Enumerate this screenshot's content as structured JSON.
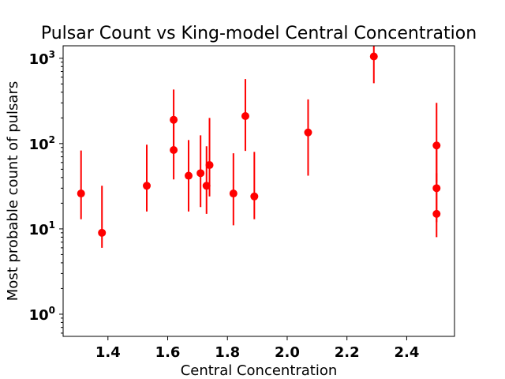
{
  "chart_data": {
    "type": "scatter",
    "title": "Pulsar Count vs King-model Central Concentration",
    "xlabel": "Central Concentration",
    "ylabel": "Most probable count of pulsars",
    "xlim": [
      1.25,
      2.56
    ],
    "ylim": [
      0.55,
      1400
    ],
    "yscale": "log",
    "grid": false,
    "x_ticks": [
      "1.4",
      "1.6",
      "1.8",
      "2.0",
      "2.2",
      "2.4"
    ],
    "y_ticks": [
      {
        "value": 1,
        "base": "10",
        "exp": "0"
      },
      {
        "value": 10,
        "base": "10",
        "exp": "1"
      },
      {
        "value": 100,
        "base": "10",
        "exp": "2"
      },
      {
        "value": 1000,
        "base": "10",
        "exp": "3"
      }
    ],
    "color": "#ff0000",
    "points": [
      {
        "x": 1.31,
        "y": 26,
        "low": 13,
        "high": 83
      },
      {
        "x": 1.38,
        "y": 9,
        "low": 6,
        "high": 32
      },
      {
        "x": 1.53,
        "y": 32,
        "low": 16,
        "high": 97
      },
      {
        "x": 1.62,
        "y": 190,
        "low": 85,
        "high": 430
      },
      {
        "x": 1.62,
        "y": 84,
        "low": 38,
        "high": 190
      },
      {
        "x": 1.67,
        "y": 42,
        "low": 16,
        "high": 110
      },
      {
        "x": 1.71,
        "y": 45,
        "low": 18,
        "high": 125
      },
      {
        "x": 1.73,
        "y": 32,
        "low": 15,
        "high": 93
      },
      {
        "x": 1.74,
        "y": 56,
        "low": 24,
        "high": 200
      },
      {
        "x": 1.82,
        "y": 26,
        "low": 11,
        "high": 77
      },
      {
        "x": 1.86,
        "y": 210,
        "low": 82,
        "high": 570
      },
      {
        "x": 1.89,
        "y": 24,
        "low": 13,
        "high": 80
      },
      {
        "x": 2.07,
        "y": 135,
        "low": 42,
        "high": 330
      },
      {
        "x": 2.29,
        "y": 1050,
        "low": 510,
        "high": 1400
      },
      {
        "x": 2.5,
        "y": 95,
        "low": 35,
        "high": 300
      },
      {
        "x": 2.5,
        "y": 30,
        "low": 12,
        "high": 95
      },
      {
        "x": 2.5,
        "y": 15,
        "low": 8,
        "high": 45
      }
    ]
  }
}
